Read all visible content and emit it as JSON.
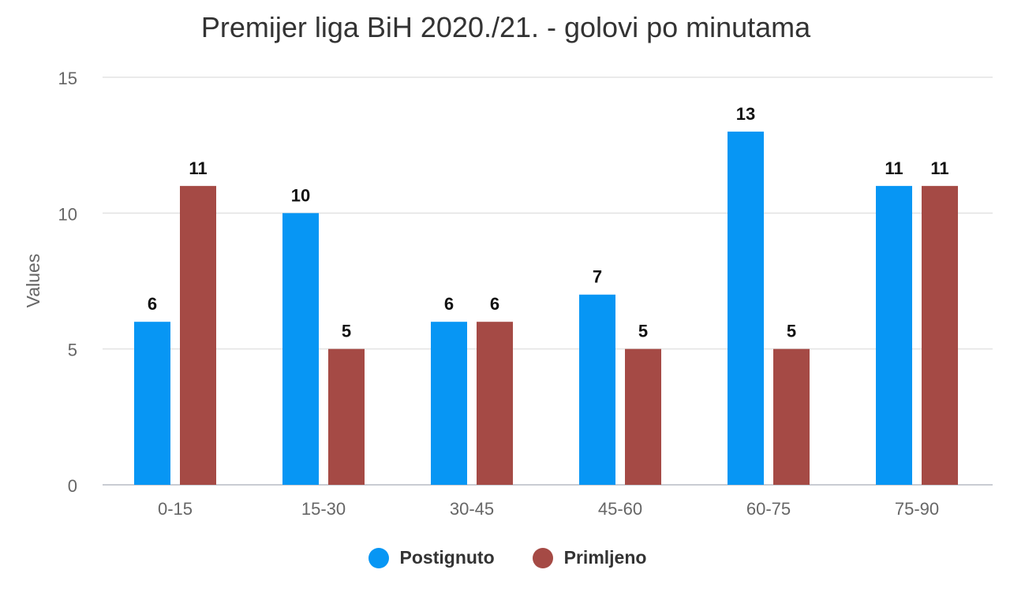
{
  "chart_data": {
    "type": "bar",
    "title": "Premijer liga BiH 2020./21. - golovi po minutama",
    "xlabel": "",
    "ylabel": "Values",
    "ylim": [
      0,
      15
    ],
    "yticks": [
      0,
      5,
      10,
      15
    ],
    "grid": true,
    "legend_position": "bottom",
    "categories": [
      "0-15",
      "15-30",
      "30-45",
      "45-60",
      "60-75",
      "75-90"
    ],
    "series": [
      {
        "name": "Postignuto",
        "color": "#0796f4",
        "values": [
          6,
          10,
          6,
          7,
          13,
          11
        ]
      },
      {
        "name": "Primljeno",
        "color": "#a54a45",
        "values": [
          11,
          5,
          6,
          5,
          5,
          11
        ]
      }
    ]
  }
}
